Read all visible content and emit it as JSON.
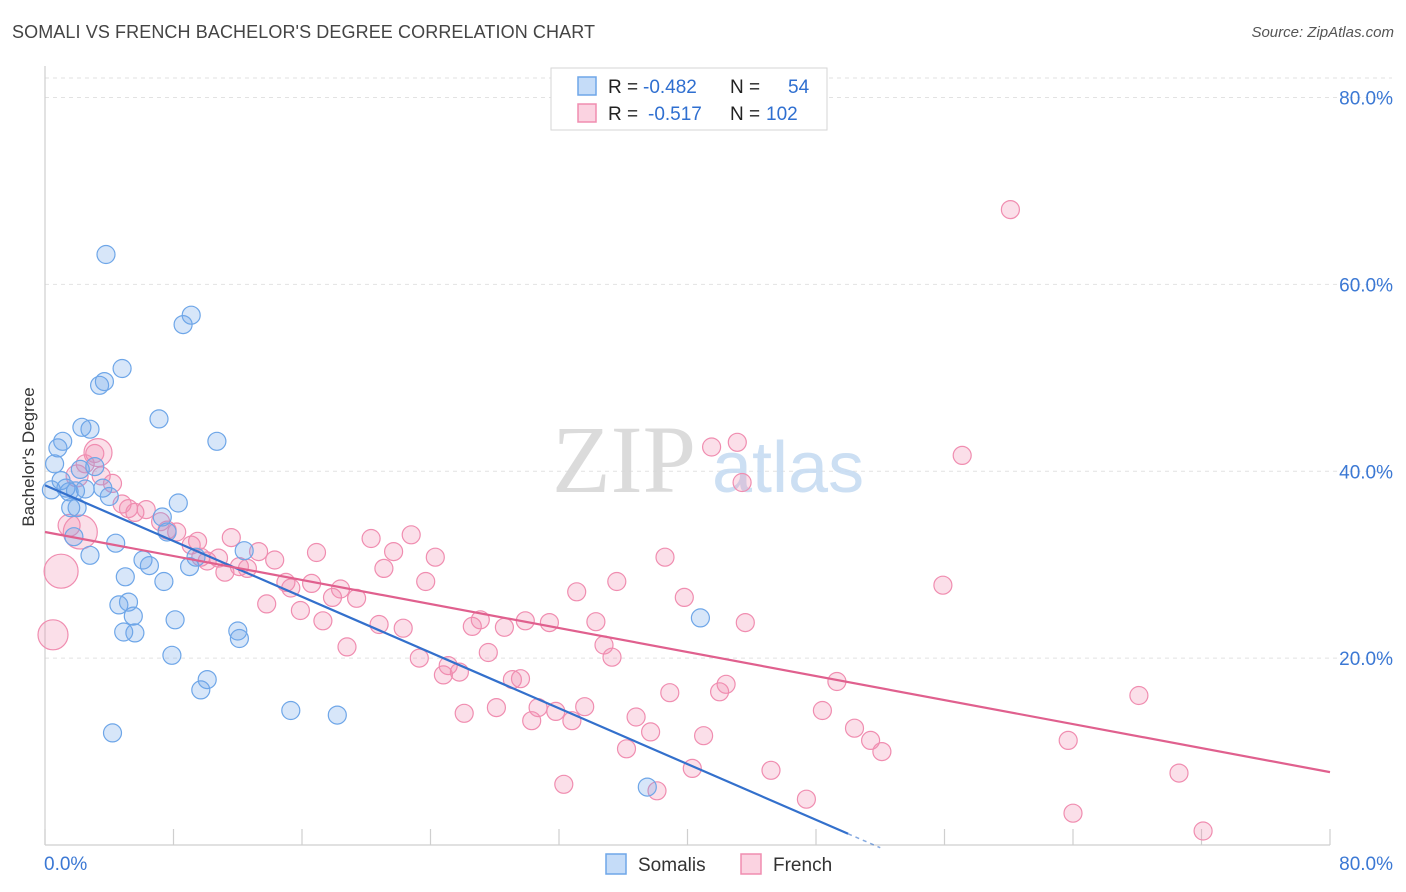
{
  "header": {
    "title": "SOMALI VS FRENCH BACHELOR'S DEGREE CORRELATION CHART",
    "source": "Source: ZipAtlas.com"
  },
  "watermark": {
    "zip": "ZIP",
    "atlas": "atlas"
  },
  "legend": {
    "rows": [
      {
        "r_label": "R =",
        "r_value": "-0.482",
        "n_label": "N =",
        "n_value": "54",
        "color": "#6ea6e8"
      },
      {
        "r_label": "R =",
        "r_value": "-0.517",
        "n_label": "N =",
        "n_value": "102",
        "color": "#f08db0"
      }
    ]
  },
  "bottom_legend": [
    "Somalis",
    "French"
  ],
  "chart_data": {
    "type": "scatter",
    "title": "SOMALI VS FRENCH BACHELOR'S DEGREE CORRELATION CHART",
    "xlabel": "",
    "ylabel": "Bachelor's Degree",
    "xlim": [
      0,
      80
    ],
    "ylim": [
      0,
      80
    ],
    "x_tick_labels": [
      "0.0%",
      "80.0%"
    ],
    "y_tick_labels": [
      "20.0%",
      "40.0%",
      "60.0%",
      "80.0%"
    ],
    "y_ticks": [
      20,
      40,
      60,
      80
    ],
    "grid": true,
    "series": [
      {
        "name": "Somalis",
        "color": "#6ea6e8",
        "line_color": "#3370cc",
        "trend": {
          "x0": 0,
          "y0": 38.5,
          "x1": 50,
          "y1": 1.2,
          "dash_to": 52
        },
        "points": [
          [
            0.4,
            38
          ],
          [
            0.6,
            40.8
          ],
          [
            0.8,
            42.5
          ],
          [
            1.0,
            39
          ],
          [
            1.1,
            43.2
          ],
          [
            1.3,
            38.2
          ],
          [
            1.5,
            37.8
          ],
          [
            1.6,
            36.1
          ],
          [
            1.8,
            33
          ],
          [
            2.0,
            36.1
          ],
          [
            2.2,
            40.2
          ],
          [
            2.3,
            44.7
          ],
          [
            2.5,
            38.1
          ],
          [
            2.8,
            44.5
          ],
          [
            3.1,
            40.5
          ],
          [
            3.6,
            38.2
          ],
          [
            3.4,
            49.2
          ],
          [
            3.7,
            49.6
          ],
          [
            4.0,
            37.3
          ],
          [
            4.4,
            32.3
          ],
          [
            4.8,
            51
          ],
          [
            3.8,
            63.2
          ],
          [
            5.0,
            28.7
          ],
          [
            5.5,
            24.5
          ],
          [
            4.6,
            25.7
          ],
          [
            5.2,
            26
          ],
          [
            5.6,
            22.7
          ],
          [
            4.9,
            22.8
          ],
          [
            6.1,
            30.5
          ],
          [
            6.5,
            29.9
          ],
          [
            7.1,
            45.6
          ],
          [
            7.4,
            28.2
          ],
          [
            7.6,
            33.5
          ],
          [
            8.1,
            24.1
          ],
          [
            8.3,
            36.6
          ],
          [
            8.6,
            55.7
          ],
          [
            9.0,
            29.8
          ],
          [
            9.1,
            56.7
          ],
          [
            9.4,
            30.8
          ],
          [
            9.7,
            16.6
          ],
          [
            10.1,
            17.7
          ],
          [
            10.7,
            43.2
          ],
          [
            7.3,
            35.1
          ],
          [
            2.8,
            31
          ],
          [
            4.2,
            12
          ],
          [
            7.9,
            20.3
          ],
          [
            12.1,
            22.1
          ],
          [
            12.0,
            22.9
          ],
          [
            12.4,
            31.5
          ],
          [
            15.3,
            14.4
          ],
          [
            18.2,
            13.9
          ],
          [
            40.8,
            24.3
          ],
          [
            37.5,
            6.2
          ],
          [
            1.9,
            37.9
          ]
        ]
      },
      {
        "name": "French",
        "color": "#f08db0",
        "line_color": "#e0608e",
        "trend": {
          "x0": 0,
          "y0": 33.5,
          "x1": 80,
          "y1": 7.8
        },
        "points": [
          [
            0.5,
            22.5
          ],
          [
            1.0,
            29.3
          ],
          [
            1.5,
            34.2
          ],
          [
            2.0,
            39.5
          ],
          [
            2.5,
            40.8
          ],
          [
            3.1,
            41.9
          ],
          [
            3.5,
            39.5
          ],
          [
            4.2,
            38.7
          ],
          [
            4.8,
            36.5
          ],
          [
            5.2,
            36
          ],
          [
            5.6,
            35.6
          ],
          [
            6.3,
            35.9
          ],
          [
            7.2,
            34.6
          ],
          [
            7.6,
            33.7
          ],
          [
            8.2,
            33.5
          ],
          [
            9.1,
            32.1
          ],
          [
            9.7,
            30.8
          ],
          [
            10.1,
            30.4
          ],
          [
            10.8,
            30.7
          ],
          [
            11.2,
            29.2
          ],
          [
            11.6,
            32.9
          ],
          [
            12.1,
            29.8
          ],
          [
            12.6,
            29.6
          ],
          [
            13.3,
            31.4
          ],
          [
            13.8,
            25.8
          ],
          [
            14.3,
            30.5
          ],
          [
            15.0,
            28.1
          ],
          [
            15.3,
            27.5
          ],
          [
            15.9,
            25.1
          ],
          [
            16.6,
            28
          ],
          [
            16.9,
            31.3
          ],
          [
            17.3,
            24
          ],
          [
            17.9,
            26.5
          ],
          [
            18.4,
            27.4
          ],
          [
            18.8,
            21.2
          ],
          [
            19.4,
            26.4
          ],
          [
            20.3,
            32.8
          ],
          [
            20.8,
            23.6
          ],
          [
            21.1,
            29.6
          ],
          [
            21.7,
            31.4
          ],
          [
            22.3,
            23.2
          ],
          [
            22.8,
            33.2
          ],
          [
            23.3,
            20
          ],
          [
            23.7,
            28.2
          ],
          [
            24.3,
            30.8
          ],
          [
            24.8,
            18.2
          ],
          [
            25.1,
            19.2
          ],
          [
            25.8,
            18.5
          ],
          [
            26.1,
            14.1
          ],
          [
            26.6,
            23.4
          ],
          [
            27.1,
            24.1
          ],
          [
            27.6,
            20.6
          ],
          [
            28.1,
            14.7
          ],
          [
            28.6,
            23.3
          ],
          [
            29.1,
            17.7
          ],
          [
            29.6,
            17.8
          ],
          [
            29.9,
            24
          ],
          [
            30.3,
            13.3
          ],
          [
            30.7,
            14.7
          ],
          [
            31.4,
            23.8
          ],
          [
            31.8,
            14.3
          ],
          [
            32.3,
            6.5
          ],
          [
            32.8,
            13.3
          ],
          [
            33.1,
            27.1
          ],
          [
            33.6,
            14.8
          ],
          [
            34.3,
            23.9
          ],
          [
            34.8,
            21.4
          ],
          [
            35.3,
            20.1
          ],
          [
            35.6,
            28.2
          ],
          [
            36.2,
            10.3
          ],
          [
            36.8,
            13.7
          ],
          [
            37.7,
            12.1
          ],
          [
            38.1,
            5.8
          ],
          [
            38.6,
            30.8
          ],
          [
            38.9,
            16.3
          ],
          [
            39.8,
            26.5
          ],
          [
            40.3,
            8.2
          ],
          [
            41.0,
            11.7
          ],
          [
            41.5,
            42.6
          ],
          [
            42.0,
            16.4
          ],
          [
            42.4,
            17.2
          ],
          [
            43.1,
            43.1
          ],
          [
            43.4,
            38.8
          ],
          [
            43.6,
            23.8
          ],
          [
            45.2,
            8
          ],
          [
            47.4,
            4.9
          ],
          [
            48.4,
            14.4
          ],
          [
            49.3,
            17.5
          ],
          [
            50.4,
            12.5
          ],
          [
            51.4,
            11.2
          ],
          [
            52.1,
            10
          ],
          [
            55.9,
            27.8
          ],
          [
            57.1,
            41.7
          ],
          [
            60.1,
            68
          ],
          [
            63.7,
            11.2
          ],
          [
            64.0,
            3.4
          ],
          [
            68.1,
            16
          ],
          [
            70.6,
            7.7
          ],
          [
            72.1,
            1.5
          ],
          [
            2.2,
            33.5
          ],
          [
            3.3,
            42
          ],
          [
            9.5,
            32.5
          ]
        ]
      }
    ]
  }
}
